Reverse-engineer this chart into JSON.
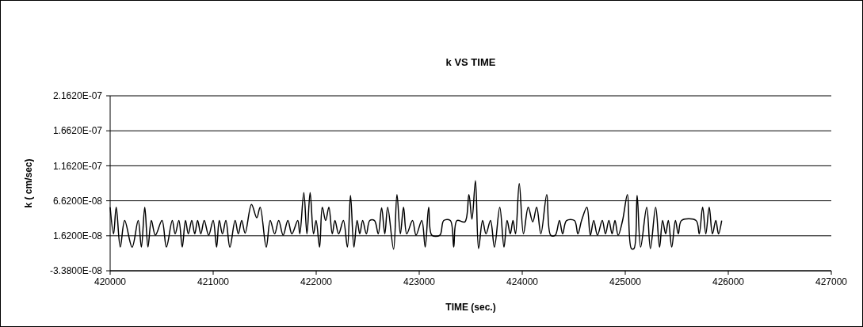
{
  "chart_data": {
    "type": "line",
    "title": "k VS TIME",
    "xlabel": "TIME (sec.)",
    "ylabel": "k ( cm/sec)",
    "xlim": [
      420000,
      427000
    ],
    "xticks": [
      420000,
      421000,
      422000,
      423000,
      424000,
      425000,
      426000,
      427000
    ],
    "ylim": [
      -3.38e-08,
      2.162e-07
    ],
    "yticks": [
      {
        "value": -3.38e-08,
        "label": "-3.3800E-08"
      },
      {
        "value": 1.62e-08,
        "label": "1.6200E-08"
      },
      {
        "value": 6.62e-08,
        "label": "6.6200E-08"
      },
      {
        "value": 1.162e-07,
        "label": "1.1620E-07"
      },
      {
        "value": 1.662e-07,
        "label": "1.6620E-07"
      },
      {
        "value": 2.162e-07,
        "label": "2.1620E-07"
      }
    ],
    "grid": "y",
    "x": [
      420000,
      420033,
      420059,
      420098,
      420141,
      420213,
      420272,
      420303,
      420336,
      420367,
      420400,
      420439,
      420503,
      420546,
      420603,
      420631,
      420667,
      420700,
      420731,
      420759,
      420792,
      420821,
      420849,
      420880,
      420913,
      420956,
      421000,
      421033,
      421059,
      421090,
      421123,
      421162,
      421213,
      421244,
      421277,
      421310,
      421372,
      421423,
      421456,
      421515,
      421554,
      421597,
      421636,
      421679,
      421725,
      421764,
      421821,
      421841,
      421880,
      421910,
      421941,
      421974,
      421999,
      422033,
      422059,
      422092,
      422123,
      422156,
      422182,
      422218,
      422264,
      422303,
      422333,
      422366,
      422397,
      422423,
      422451,
      422487,
      422520,
      422566,
      422602,
      422635,
      422666,
      422694,
      422751,
      422784,
      422817,
      422848,
      422879,
      422935,
      422969,
      423025,
      423058,
      423092,
      423123,
      423200,
      423238,
      423302,
      423335,
      423366,
      423443,
      423482,
      423512,
      423546,
      423576,
      423615,
      423648,
      423692,
      423730,
      423782,
      423823,
      423853,
      423884,
      423910,
      423935,
      423971,
      424012,
      424058,
      424102,
      424140,
      424181,
      424238,
      424276,
      424320,
      424361,
      424392,
      424430,
      424507,
      424540,
      424576,
      424628,
      424661,
      424694,
      424730,
      424777,
      424808,
      424841,
      424872,
      424900,
      424931,
      424974,
      425021,
      425059,
      425085,
      425115,
      425149,
      425208,
      425244,
      425295,
      425333,
      425362,
      425392,
      425418,
      425451,
      425487,
      425515,
      425546,
      425687,
      425718,
      425751,
      425782,
      425815,
      425846,
      425879,
      425905,
      425936
    ],
    "series": [
      {
        "color": "#000000",
        "values": [
          5.7e-08,
          1.9e-08,
          5.7e-08,
          0,
          3.8e-08,
          0,
          3.8e-08,
          0,
          5.7e-08,
          0,
          3.8e-08,
          1.7e-08,
          3.8e-08,
          0,
          3.8e-08,
          1.9e-08,
          3.8e-08,
          0,
          3.8e-08,
          1.9e-08,
          3.8e-08,
          1.9e-08,
          3.8e-08,
          1.9e-08,
          3.8e-08,
          1.7e-08,
          3.8e-08,
          0,
          3.8e-08,
          1.9e-08,
          3.8e-08,
          0,
          3.8e-08,
          1.9e-08,
          3.8e-08,
          2e-08,
          6.1e-08,
          4.2e-08,
          5.7e-08,
          0,
          3.8e-08,
          1.9e-08,
          3.8e-08,
          1.7e-08,
          3.8e-08,
          1.9e-08,
          3.8e-08,
          1.9e-08,
          7.8e-08,
          1.9e-08,
          7.8e-08,
          1.9e-08,
          3.8e-08,
          0,
          5.7e-08,
          3.8e-08,
          5.7e-08,
          1.9e-08,
          3.8e-08,
          1.9e-08,
          3.8e-08,
          0,
          7.4e-08,
          0,
          3.8e-08,
          1.9e-08,
          3.8e-08,
          1.9e-08,
          3.8e-08,
          3.8e-08,
          1.9e-08,
          5.6e-08,
          1.9e-08,
          5.7e-08,
          -3e-09,
          7.5e-08,
          1.9e-08,
          5.7e-08,
          1.9e-08,
          3.8e-08,
          1.7e-08,
          3.8e-08,
          0,
          5.7e-08,
          1.7e-08,
          1.7e-08,
          3.8e-08,
          3.8e-08,
          0,
          3.8e-08,
          3.6e-08,
          7.5e-08,
          4e-08,
          9.5e-08,
          -2e-09,
          3.8e-08,
          1.9e-08,
          3.8e-08,
          0,
          5.7e-08,
          0,
          3.8e-08,
          1.9e-08,
          3.8e-08,
          1.9e-08,
          9.1e-08,
          1.9e-08,
          5.7e-08,
          3.6e-08,
          5.7e-08,
          1.9e-08,
          7.5e-08,
          1.7e-08,
          1.7e-08,
          3.8e-08,
          1.9e-08,
          3.8e-08,
          3.8e-08,
          1.9e-08,
          3.8e-08,
          5.7e-08,
          1.7e-08,
          3.8e-08,
          1.7e-08,
          3.8e-08,
          1.9e-08,
          3.8e-08,
          1.9e-08,
          3.8e-08,
          1.7e-08,
          3.8e-08,
          7.5e-08,
          -2e-09,
          -2e-09,
          7.4e-08,
          0,
          5.7e-08,
          -2e-09,
          5.7e-08,
          0,
          3.8e-08,
          1.9e-08,
          3.8e-08,
          0,
          3.8e-08,
          1.9e-08,
          3.8e-08,
          3.8e-08,
          1.9e-08,
          5.7e-08,
          1.9e-08,
          5.7e-08,
          1.9e-08,
          3.8e-08,
          1.9e-08,
          3.8e-08
        ]
      }
    ]
  }
}
